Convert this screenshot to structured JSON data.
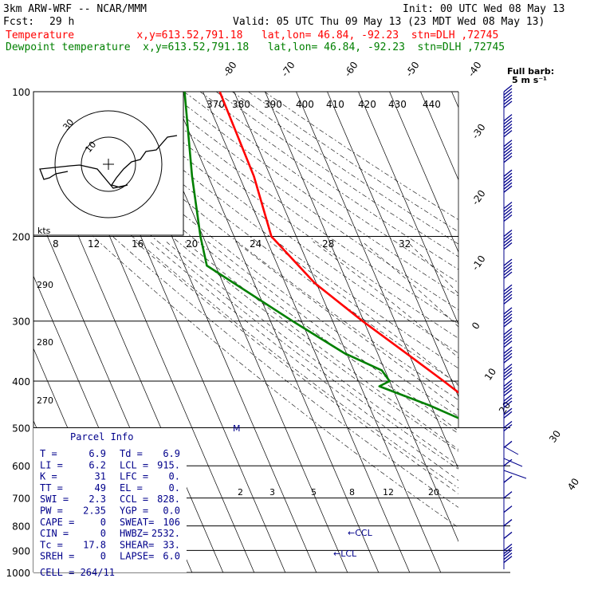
{
  "header": {
    "model": "3km ARW-WRF -- NCAR/MMM",
    "init": "Init: 00 UTC Wed 08 May 13",
    "fcst_label": "Fcst:",
    "fcst_value": "29 h",
    "valid": "Valid: 05 UTC Thu 09 May 13 (23 MDT Wed 08 May 13)",
    "temp_line": "Temperature          x,y=613.52,791.18   lat,lon= 46.84, -92.23  stn=DLH ,72745",
    "dew_line": "Dewpoint temperature  x,y=613.52,791.18   lat,lon= 46.84, -92.23  stn=DLH ,72745"
  },
  "colors": {
    "temperature": "#ff0000",
    "dewpoint": "#008000",
    "wind": "#00008b",
    "axes": "#000000"
  },
  "wind_legend": {
    "title": "Full barb:",
    "value": "5 m s⁻¹"
  },
  "hodograph_labels": {
    "kts": "kts",
    "ring_outer": "30",
    "ring_inner": "10"
  },
  "chart_data": {
    "type": "line",
    "pressure_levels": [
      100,
      200,
      300,
      400,
      500,
      600,
      700,
      800,
      900,
      1000
    ],
    "isotherm_labels": [
      "-80",
      "-70",
      "-60",
      "-50",
      "-40",
      "-30",
      "-20",
      "-10",
      "0",
      "10",
      "20",
      "30",
      "40"
    ],
    "theta_labels": [
      "370",
      "380",
      "390",
      "400",
      "410",
      "420",
      "430",
      "440"
    ],
    "hodo_speed_labels": [
      "8",
      "12",
      "16",
      "20",
      "24",
      "28",
      "32"
    ],
    "left_theta_labels": [
      "290",
      "280",
      "270"
    ],
    "mixing_ratio_labels": [
      "2",
      "3",
      "5",
      "8",
      "12",
      "20"
    ],
    "annotations": {
      "ccl": "CCL",
      "lcl": "LCL",
      "m": "M"
    },
    "series": [
      {
        "name": "Temperature",
        "points": [
          [
            100,
            -54.6
          ],
          [
            150,
            -55.3
          ],
          [
            200,
            -58.0
          ],
          [
            250,
            -50.5
          ],
          [
            300,
            -40.4
          ],
          [
            350,
            -30.8
          ],
          [
            400,
            -22.6
          ],
          [
            450,
            -15.7
          ],
          [
            500,
            -10.0
          ],
          [
            550,
            -5.9
          ],
          [
            600,
            -2.3
          ],
          [
            650,
            0.0
          ],
          [
            700,
            0.7
          ],
          [
            750,
            3.4
          ],
          [
            800,
            5.8
          ],
          [
            850,
            7.4
          ],
          [
            875,
            7.9
          ],
          [
            900,
            7.0
          ],
          [
            925,
            7.2
          ]
        ]
      },
      {
        "name": "Dewpoint temperature",
        "points": [
          [
            100,
            -65.9
          ],
          [
            150,
            -75.2
          ],
          [
            200,
            -80.8
          ],
          [
            230,
            -82.8
          ],
          [
            300,
            -62.9
          ],
          [
            350,
            -50.6
          ],
          [
            380,
            -41.0
          ],
          [
            400,
            -40.0
          ],
          [
            410,
            -44.0
          ],
          [
            450,
            -30.3
          ],
          [
            500,
            -17.2
          ],
          [
            550,
            -11.6
          ],
          [
            600,
            -6.9
          ],
          [
            650,
            -3.3
          ],
          [
            700,
            0.5
          ],
          [
            750,
            0.7
          ],
          [
            800,
            3.1
          ],
          [
            850,
            4.2
          ],
          [
            900,
            5.7
          ],
          [
            925,
            0.2
          ],
          [
            950,
            -0.6
          ]
        ]
      }
    ],
    "wind_barbs_ms": [
      [
        100,
        30
      ],
      [
        115,
        30
      ],
      [
        130,
        28
      ],
      [
        150,
        28
      ],
      [
        175,
        27
      ],
      [
        200,
        26
      ],
      [
        230,
        25
      ],
      [
        260,
        25
      ],
      [
        290,
        24
      ],
      [
        320,
        23
      ],
      [
        350,
        22
      ],
      [
        380,
        20
      ],
      [
        410,
        18
      ],
      [
        440,
        15
      ],
      [
        470,
        12
      ],
      [
        500,
        9
      ],
      [
        550,
        7
      ],
      [
        600,
        5
      ],
      [
        650,
        4
      ],
      [
        700,
        3
      ],
      [
        750,
        3
      ],
      [
        800,
        3
      ],
      [
        850,
        5
      ],
      [
        900,
        12
      ],
      [
        925,
        14
      ]
    ]
  },
  "parcel_info": {
    "title": "Parcel Info",
    "rows": [
      [
        "T  =",
        "6.9",
        "Td =",
        "6.9"
      ],
      [
        "LI =",
        "6.2",
        "LCL =",
        "915."
      ],
      [
        "K  =",
        "31",
        "LFC =",
        "0."
      ],
      [
        "TT =",
        "49",
        "EL =",
        "0."
      ],
      [
        "SWI =",
        "2.3",
        "CCL =",
        "828."
      ],
      [
        "PW =",
        "2.35",
        "YGP =",
        "0.0"
      ],
      [
        "CAPE =",
        "0",
        "SWEAT=",
        "106"
      ],
      [
        "CIN =",
        "0",
        "HWBZ=",
        "2532."
      ],
      [
        "Tc =",
        "17.8",
        "SHEAR=",
        "33."
      ],
      [
        "SREH =",
        "0",
        "LAPSE=",
        "6.0"
      ]
    ],
    "cell": "CELL = 264/11"
  }
}
